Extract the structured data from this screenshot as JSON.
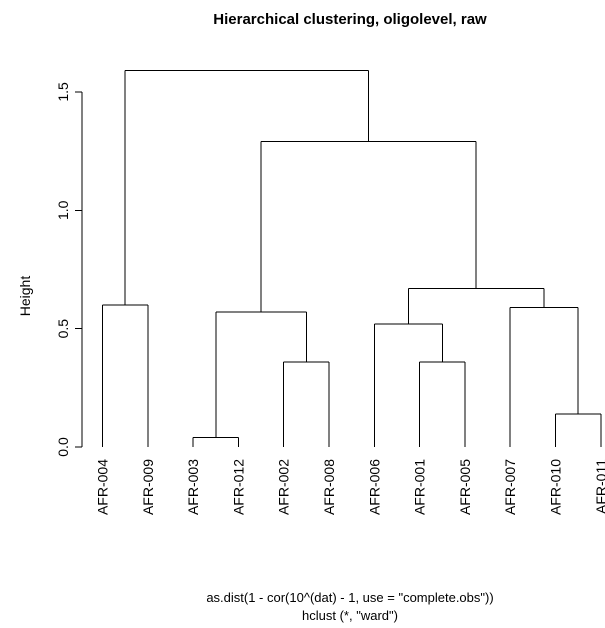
{
  "chart_data": {
    "type": "dendrogram",
    "title": "Hierarchical clustering, oligolevel, raw",
    "ylabel": "Height",
    "xlabel_line1": "as.dist(1 - cor(10^(dat) - 1, use = \"complete.obs\"))",
    "xlabel_line2": "hclust (*, \"ward\")",
    "ylim": [
      0,
      1.6
    ],
    "yticks": [
      0.0,
      0.5,
      1.0,
      1.5
    ],
    "ytick_labels": [
      "0.0",
      "0.5",
      "1.0",
      "1.5"
    ],
    "leaves": [
      "AFR-004",
      "AFR-009",
      "AFR-003",
      "AFR-012",
      "AFR-002",
      "AFR-008",
      "AFR-006",
      "AFR-001",
      "AFR-005",
      "AFR-007",
      "AFR-010",
      "AFR-011"
    ],
    "merges": [
      {
        "left": "L2",
        "right": "L3",
        "height": 0.04
      },
      {
        "left": "L10",
        "right": "L11",
        "height": 0.14
      },
      {
        "left": "L4",
        "right": "L5",
        "height": 0.36
      },
      {
        "left": "L7",
        "right": "L8",
        "height": 0.36
      },
      {
        "left": "L6",
        "right": "M3",
        "height": 0.52
      },
      {
        "left": "M0",
        "right": "M2",
        "height": 0.57
      },
      {
        "left": "L9",
        "right": "M1",
        "height": 0.59
      },
      {
        "left": "L0",
        "right": "L1",
        "height": 0.6
      },
      {
        "left": "M4",
        "right": "M6",
        "height": 0.67
      },
      {
        "left": "M5",
        "right": "M8",
        "height": 1.29
      },
      {
        "left": "M7",
        "right": "M9",
        "height": 1.59
      }
    ]
  }
}
